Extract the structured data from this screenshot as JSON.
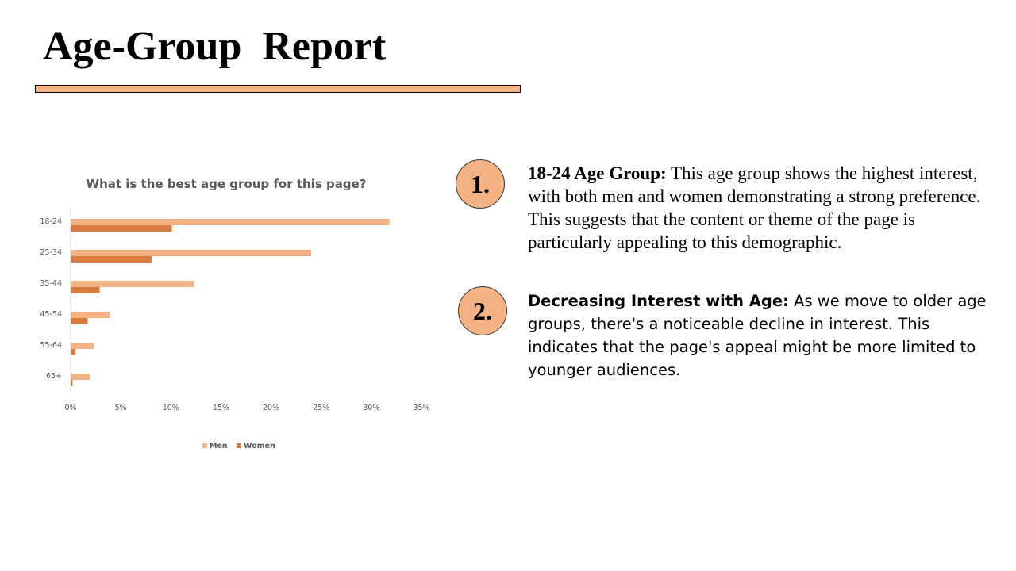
{
  "slide": {
    "title": "Age-Group  Report"
  },
  "points": [
    {
      "number": "1.",
      "lead": "18-24 Age Group:",
      "text": " This age group shows the highest interest, with both men and women demonstrating a strong preference. This suggests that the content or theme of the page is particularly appealing to this demographic."
    },
    {
      "number": "2.",
      "lead": "Decreasing Interest with Age:",
      "text": " As we move to older age groups, there's a noticeable decline in interest. This indicates that the page's appeal might be more limited to younger audiences."
    }
  ],
  "colors": {
    "accent": "#f4b183",
    "men": "#f4b183",
    "women": "#d97a3e",
    "text_dark": "#595959"
  },
  "chart_data": {
    "type": "bar",
    "orientation": "horizontal",
    "title": "What is the best age group for this page?",
    "categories": [
      "18-24",
      "25-34",
      "35-44",
      "45-54",
      "55-64",
      "65+"
    ],
    "series": [
      {
        "name": "Men",
        "values": [
          31.8,
          24.0,
          12.3,
          3.9,
          2.3,
          1.9
        ]
      },
      {
        "name": "Women",
        "values": [
          10.1,
          8.1,
          2.9,
          1.7,
          0.5,
          0.2
        ]
      }
    ],
    "xlim": [
      0,
      35
    ],
    "x_ticks": [
      "0%",
      "5%",
      "10%",
      "15%",
      "20%",
      "25%",
      "30%",
      "35%"
    ],
    "xlabel": "",
    "ylabel": "",
    "grid": false,
    "legend_position": "bottom"
  }
}
